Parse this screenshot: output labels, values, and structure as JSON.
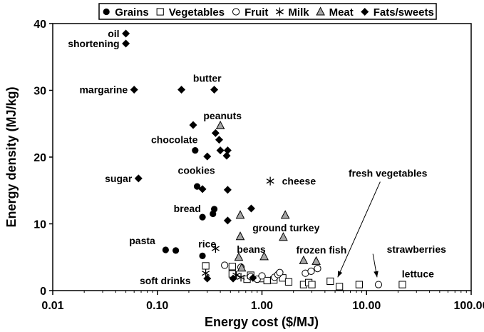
{
  "chart_data": {
    "type": "scatter",
    "xlabel": "Energy cost ($/MJ)",
    "ylabel": "Energy density (MJ/kg)",
    "xscale": "log",
    "xlim": [
      0.01,
      100
    ],
    "ylim": [
      0,
      40
    ],
    "x_ticks": [
      "0.01",
      "0.10",
      "1.00",
      "10.00",
      "100.00"
    ],
    "y_ticks": [
      "0",
      "10",
      "20",
      "30",
      "40"
    ],
    "legend_position": "top",
    "series": [
      {
        "name": "Grains",
        "marker": "filled-circle",
        "points": [
          [
            0.12,
            6.1
          ],
          [
            0.15,
            6.0
          ],
          [
            0.23,
            21.0
          ],
          [
            0.24,
            15.6
          ],
          [
            0.27,
            11.0
          ],
          [
            0.27,
            5.2
          ],
          [
            0.35,
            12.2
          ],
          [
            0.34,
            11.5
          ]
        ]
      },
      {
        "name": "Vegetables",
        "marker": "open-square",
        "points": [
          [
            0.29,
            3.7
          ],
          [
            0.52,
            3.6
          ],
          [
            0.52,
            2.5
          ],
          [
            0.72,
            1.7
          ],
          [
            0.78,
            2.3
          ],
          [
            1.0,
            1.8
          ],
          [
            1.12,
            1.5
          ],
          [
            1.3,
            1.6
          ],
          [
            1.58,
            1.9
          ],
          [
            1.8,
            1.3
          ],
          [
            2.5,
            0.9
          ],
          [
            2.8,
            1.2
          ],
          [
            3.0,
            0.9
          ],
          [
            4.5,
            1.4
          ],
          [
            5.5,
            0.6
          ],
          [
            8.5,
            0.9
          ],
          [
            22.0,
            0.9
          ]
        ]
      },
      {
        "name": "Fruit",
        "marker": "open-circle",
        "points": [
          [
            0.44,
            3.8
          ],
          [
            0.63,
            3.5
          ],
          [
            0.78,
            2.1
          ],
          [
            0.9,
            1.7
          ],
          [
            1.0,
            2.2
          ],
          [
            1.32,
            2.0
          ],
          [
            1.42,
            2.4
          ],
          [
            1.48,
            2.7
          ],
          [
            2.6,
            2.6
          ],
          [
            2.95,
            2.9
          ],
          [
            3.4,
            3.3
          ],
          [
            13.0,
            0.9
          ]
        ]
      },
      {
        "name": "Milk",
        "marker": "asterisk",
        "points": [
          [
            0.36,
            6.3
          ],
          [
            0.29,
            2.6
          ],
          [
            0.57,
            2.3
          ],
          [
            0.63,
            2.0
          ],
          [
            1.2,
            16.4
          ]
        ]
      },
      {
        "name": "Meat",
        "marker": "filled-triangle",
        "points": [
          [
            0.4,
            24.7
          ],
          [
            0.62,
            11.3
          ],
          [
            0.62,
            8.1
          ],
          [
            0.6,
            5.0
          ],
          [
            0.64,
            3.4
          ],
          [
            1.05,
            5.1
          ],
          [
            1.6,
            8.0
          ],
          [
            1.67,
            11.3
          ],
          [
            2.5,
            4.5
          ],
          [
            3.3,
            4.4
          ]
        ]
      },
      {
        "name": "Fats/sweets",
        "marker": "filled-diamond",
        "points": [
          [
            0.05,
            38.5
          ],
          [
            0.05,
            37.0
          ],
          [
            0.06,
            30.1
          ],
          [
            0.17,
            30.1
          ],
          [
            0.35,
            30.1
          ],
          [
            0.22,
            24.8
          ],
          [
            0.36,
            23.6
          ],
          [
            0.39,
            22.6
          ],
          [
            0.4,
            21.0
          ],
          [
            0.47,
            21.0
          ],
          [
            0.46,
            20.2
          ],
          [
            0.3,
            20.1
          ],
          [
            0.066,
            16.8
          ],
          [
            0.27,
            15.2
          ],
          [
            0.47,
            15.1
          ],
          [
            0.47,
            10.5
          ],
          [
            0.79,
            12.3
          ],
          [
            0.3,
            1.8
          ],
          [
            0.53,
            1.8
          ],
          [
            0.82,
            1.9
          ]
        ]
      }
    ],
    "annotations": [
      {
        "text": "oil",
        "x": 0.05,
        "y": 38.5,
        "anchor": "end"
      },
      {
        "text": "shortening",
        "x": 0.05,
        "y": 37.0,
        "anchor": "end"
      },
      {
        "text": "margarine",
        "x": 0.06,
        "y": 30.1,
        "anchor": "end"
      },
      {
        "text": "butter",
        "x": 0.3,
        "y": 31.8,
        "anchor": "middle"
      },
      {
        "text": "peanuts",
        "x": 0.42,
        "y": 26.2,
        "anchor": "middle"
      },
      {
        "text": "chocolate",
        "x": 0.28,
        "y": 22.6,
        "anchor": "end"
      },
      {
        "text": "cookies",
        "x": 0.41,
        "y": 18.0,
        "anchor": "end"
      },
      {
        "text": "sugar",
        "x": 0.066,
        "y": 16.8,
        "anchor": "end"
      },
      {
        "text": "cheese",
        "x": 1.35,
        "y": 16.4,
        "anchor": "start"
      },
      {
        "text": "bread",
        "x": 0.3,
        "y": 12.3,
        "anchor": "end"
      },
      {
        "text": "ground turkey",
        "x": 1.7,
        "y": 9.4,
        "anchor": "middle"
      },
      {
        "text": "pasta",
        "x": 0.11,
        "y": 7.5,
        "anchor": "end"
      },
      {
        "text": "rice",
        "x": 0.3,
        "y": 7.0,
        "anchor": "middle"
      },
      {
        "text": "beans",
        "x": 0.79,
        "y": 6.2,
        "anchor": "middle"
      },
      {
        "text": "frozen fish",
        "x": 3.7,
        "y": 6.1,
        "anchor": "middle"
      },
      {
        "text": "strawberries",
        "x": 30.0,
        "y": 6.2,
        "anchor": "middle"
      },
      {
        "text": "soft drinks",
        "x": 0.24,
        "y": 1.5,
        "anchor": "end"
      },
      {
        "text": "lettuce",
        "x": 31.0,
        "y": 2.5,
        "anchor": "middle"
      },
      {
        "text": "fresh vegetables",
        "x": 16.0,
        "y": 17.6,
        "anchor": "middle"
      }
    ],
    "arrows": [
      {
        "from": [
          13.5,
          16.3
        ],
        "to": [
          5.3,
          2.0
        ]
      },
      {
        "from": [
          11.5,
          5.5
        ],
        "to": [
          12.6,
          2.0
        ]
      }
    ]
  }
}
